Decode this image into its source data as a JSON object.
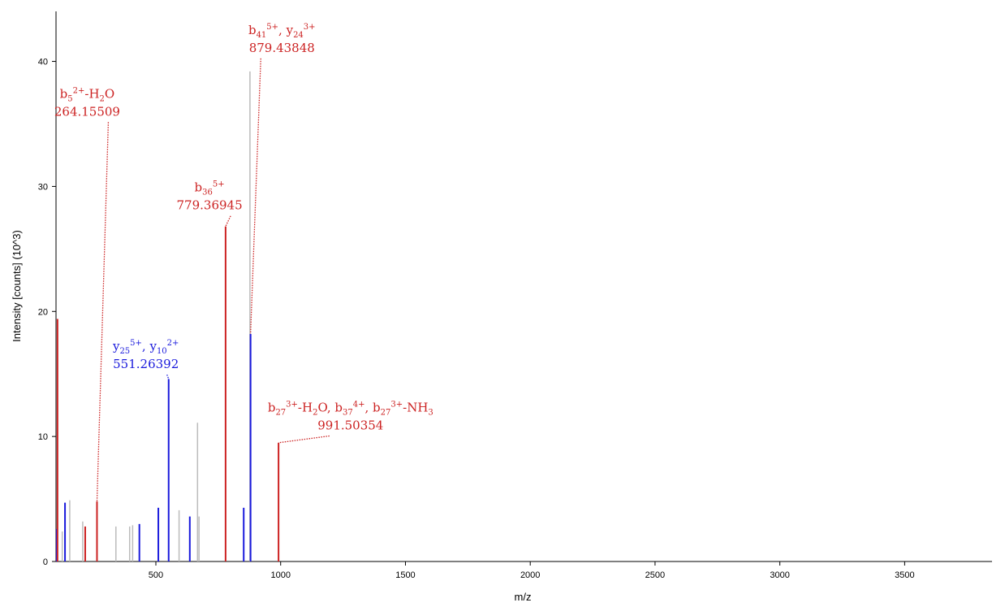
{
  "chart_data": {
    "type": "bar",
    "title": "",
    "xlabel": "m/z",
    "ylabel": "Intensity [counts] (10^3)",
    "xlim": [
      100,
      3850
    ],
    "ylim": [
      0,
      44
    ],
    "x_ticks": [
      500,
      1000,
      1500,
      2000,
      2500,
      3000,
      3500
    ],
    "y_ticks": [
      0,
      10,
      20,
      30,
      40
    ],
    "grid": false,
    "colors": {
      "b_ion": "#cc2222",
      "y_ion": "#1a1adc",
      "unassigned": "#bbbbbb",
      "axis": "#000000"
    },
    "peaks": [
      {
        "mz": 103,
        "intensity": 2.6,
        "type": "y_ion"
      },
      {
        "mz": 106,
        "intensity": 19.4,
        "type": "b_ion"
      },
      {
        "mz": 125,
        "intensity": 2.4,
        "type": "unassigned"
      },
      {
        "mz": 136,
        "intensity": 4.7,
        "type": "y_ion"
      },
      {
        "mz": 155,
        "intensity": 4.9,
        "type": "unassigned"
      },
      {
        "mz": 207,
        "intensity": 3.2,
        "type": "unassigned"
      },
      {
        "mz": 217,
        "intensity": 2.8,
        "type": "b_ion"
      },
      {
        "mz": 264.15509,
        "intensity": 4.8,
        "type": "b_ion"
      },
      {
        "mz": 340,
        "intensity": 2.8,
        "type": "unassigned"
      },
      {
        "mz": 395,
        "intensity": 2.8,
        "type": "unassigned"
      },
      {
        "mz": 407,
        "intensity": 2.9,
        "type": "unassigned"
      },
      {
        "mz": 434,
        "intensity": 3.0,
        "type": "y_ion"
      },
      {
        "mz": 510,
        "intensity": 4.3,
        "type": "y_ion"
      },
      {
        "mz": 551.26392,
        "intensity": 14.6,
        "type": "y_ion"
      },
      {
        "mz": 593,
        "intensity": 4.1,
        "type": "unassigned"
      },
      {
        "mz": 636,
        "intensity": 3.6,
        "type": "y_ion"
      },
      {
        "mz": 667,
        "intensity": 11.1,
        "type": "unassigned"
      },
      {
        "mz": 673,
        "intensity": 3.6,
        "type": "unassigned"
      },
      {
        "mz": 779.36945,
        "intensity": 26.8,
        "type": "b_ion"
      },
      {
        "mz": 852,
        "intensity": 4.3,
        "type": "y_ion"
      },
      {
        "mz": 877,
        "intensity": 39.2,
        "type": "unassigned"
      },
      {
        "mz": 879.43848,
        "intensity": 18.2,
        "type": "y_ion"
      },
      {
        "mz": 991.50354,
        "intensity": 9.5,
        "type": "b_ion"
      }
    ],
    "annotations": [
      {
        "ion_label": "b₅²⁺-H₂O",
        "mz_label": "264.15509",
        "peak_mz": 264.15509,
        "peak_intensity": 4.8,
        "label_mz": 225,
        "label_intensity": 35.4,
        "color_key": "b_ion"
      },
      {
        "ion_label": "b₃₆⁵⁺",
        "mz_label": "779.36945",
        "peak_mz": 779.36945,
        "peak_intensity": 26.8,
        "label_mz": 715,
        "label_intensity": 27.9,
        "color_key": "b_ion"
      },
      {
        "ion_label": "b₄₁⁵⁺, y₂₄³⁺",
        "mz_label": "879.43848",
        "peak_mz": 879.43848,
        "peak_intensity": 18.2,
        "label_mz": 1005,
        "label_intensity": 40.5,
        "color_key": "b_ion"
      },
      {
        "ion_label": "y₂₅⁵⁺, y₁₀²⁺",
        "mz_label": "551.26392",
        "peak_mz": 551.26392,
        "peak_intensity": 14.6,
        "label_mz": 460,
        "label_intensity": 15.2,
        "color_key": "y_ion"
      },
      {
        "ion_label": "b₂₇³⁺-H₂O, b₃₇⁴⁺, b₂₇³⁺-NH₃",
        "mz_label": "991.50354",
        "peak_mz": 991.50354,
        "peak_intensity": 9.5,
        "label_mz": 1280,
        "label_intensity": 10.3,
        "color_key": "b_ion"
      }
    ]
  }
}
